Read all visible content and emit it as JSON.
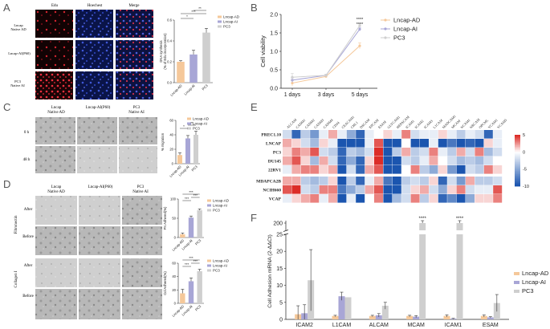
{
  "panels": {
    "A": {
      "letter": "A",
      "micro_headers": [
        "Edu",
        "Hoechest",
        "Merge"
      ],
      "micro_rows": [
        "Lncap\nNative AD",
        "Lncap-AI(P60)",
        "PC3\nNative AI"
      ],
      "ylabel": "DNA synthesis\n(% of Edu incorporation)",
      "sig": [
        "*",
        "***",
        "**"
      ]
    },
    "B": {
      "letter": "B"
    },
    "C": {
      "letter": "C",
      "micro_headers": [
        "Lncap\nNative AD",
        "Lncap-AI(P60)",
        "PC3\nNative AI"
      ],
      "micro_rows": [
        "0 h",
        "48 h"
      ],
      "ylabel": "% migration",
      "sig": [
        "*",
        "**"
      ]
    },
    "D": {
      "letter": "D",
      "micro_headers": [
        "Lncap\nNative AD",
        "Lncap-AI(P60)",
        "PC3\nNative AI"
      ],
      "groups": [
        "Fibronectin",
        "Collagen I"
      ],
      "rows": [
        "After",
        "Before"
      ],
      "ylabel_top": "FN Adhered(%)",
      "ylabel_bottom": "Col Adhered(%)",
      "sig_top": [
        "***",
        "***",
        "***"
      ],
      "sig_bottom": [
        "***",
        "***",
        "***"
      ]
    },
    "E": {
      "letter": "E"
    },
    "F": {
      "letter": "F"
    }
  },
  "colors": {
    "lncap_ad": "#f5c89a",
    "lncap_ai": "#a8a6d6",
    "pc3": "#cfcfcf"
  },
  "chart_data": [
    {
      "id": "A",
      "type": "bar",
      "categories": [
        "Lncap-AD",
        "Lncap-AI",
        "PC3"
      ],
      "values": [
        0.2,
        0.27,
        0.48
      ],
      "errors": [
        0.01,
        0.04,
        0.04
      ],
      "ylim": [
        0,
        0.6
      ],
      "yticks": [
        "0.0",
        "0.2",
        "0.4",
        "0.6"
      ],
      "legend": [
        "Lncap-AD",
        "Lncap-AI",
        "PC3"
      ]
    },
    {
      "id": "B",
      "type": "line",
      "ylabel": "Cell viability",
      "x": [
        "1 days",
        "3 days",
        "5 days"
      ],
      "ylim": [
        0.0,
        2.0
      ],
      "yticks": [
        "0.0",
        "0.5",
        "1.0",
        "1.5",
        "2.0"
      ],
      "series": [
        {
          "name": "Lncap-AD",
          "values": [
            0.14,
            0.32,
            1.15
          ],
          "errors": [
            0.08,
            0.03,
            0.08
          ]
        },
        {
          "name": "Lncap-AI",
          "values": [
            0.22,
            0.35,
            1.6
          ],
          "errors": [
            0.06,
            0.02,
            0.05
          ]
        },
        {
          "name": "PC3",
          "values": [
            0.3,
            0.35,
            1.7
          ],
          "errors": [
            0.1,
            0.03,
            0.05
          ]
        }
      ],
      "sig": [
        "****",
        "****"
      ]
    },
    {
      "id": "C",
      "type": "bar",
      "categories": [
        "Lncap-AD",
        "Lncap-AI",
        "PC3"
      ],
      "values": [
        12,
        35,
        40
      ],
      "errors": [
        3,
        4,
        5
      ],
      "ylim": [
        0,
        60
      ],
      "yticks": [
        "0",
        "20",
        "40",
        "60"
      ],
      "legend": [
        "Lncap-AD",
        "Lncap-AI",
        "PC3"
      ]
    },
    {
      "id": "D1",
      "type": "bar",
      "categories": [
        "Lncap-AD",
        "Lncap-AI",
        "PC3"
      ],
      "values": [
        10,
        62,
        85
      ],
      "errors": [
        4,
        5,
        4
      ],
      "ylim": [
        0,
        120
      ],
      "yticks": [
        "0",
        "50",
        "100"
      ],
      "legend": [
        "Lncap-AD",
        "Lncap-AI",
        "PC3"
      ]
    },
    {
      "id": "D2",
      "type": "bar",
      "categories": [
        "Lncap-AD",
        "Lncap-AI",
        "PC3"
      ],
      "values": [
        15,
        33,
        48
      ],
      "errors": [
        6,
        5,
        3
      ],
      "ylim": [
        0,
        60
      ],
      "yticks": [
        "0",
        "20",
        "40",
        "60"
      ],
      "legend": [
        "Lncap-AD",
        "Lncap-AI",
        "PC3"
      ]
    },
    {
      "id": "E",
      "type": "heatmap",
      "columns": [
        "ALCAM",
        "CADM1",
        "CADM2",
        "CADM3",
        "CADM4",
        "CD34",
        "CEACAM1",
        "CHL1",
        "DSCAM",
        "EPCAM",
        "ESAM",
        "GLYCAM1",
        "HEPACAM",
        "ICAM1",
        "ICAM2",
        "ICAM3",
        "L1CAM",
        "MADCAM1",
        "MCAM",
        "NCAM1",
        "NRCAM",
        "OPCML",
        "VCAM1",
        "VCAM5"
      ],
      "rows": [
        "PREC1.10",
        "LNCAP",
        "PC3",
        "DU145",
        "22RV1",
        "MDAPCA2B",
        "NCIH660",
        "VCAP"
      ],
      "scale_ticks": [
        "5",
        "0",
        "-5",
        "-10"
      ],
      "scale_range": [
        -10,
        5
      ],
      "values": [
        [
          -2,
          -9,
          -3,
          -6,
          -1,
          2,
          -1,
          -5,
          -9,
          -1,
          0,
          1,
          -1,
          3,
          -2,
          -1,
          -1,
          1,
          -1,
          -3,
          -1,
          -2,
          -9,
          -1
        ],
        [
          2,
          1,
          -2,
          -4,
          1,
          -1,
          -10,
          -10,
          -10,
          -1,
          4,
          -10,
          -10,
          0,
          -10,
          -10,
          -1,
          -10,
          -8,
          -10,
          -9,
          -10,
          1,
          -1
        ],
        [
          1,
          3,
          2,
          4,
          -2,
          -3,
          -9,
          -3,
          -4,
          -2,
          5,
          -10,
          -3,
          2,
          -3,
          -2,
          3,
          -1,
          -3,
          2,
          -2,
          3,
          -4,
          -2
        ],
        [
          2,
          4,
          1,
          -4,
          2,
          -2,
          -9,
          -5,
          -9,
          1,
          5,
          -10,
          -10,
          -2,
          -3,
          -1,
          2,
          0,
          -2,
          -4,
          -3,
          -4,
          -2,
          0
        ],
        [
          -1,
          2,
          3,
          3,
          1,
          2,
          -10,
          -2,
          -9,
          2,
          4,
          -10,
          -10,
          0,
          3,
          -3,
          -5,
          1,
          -6,
          -10,
          -2,
          -3,
          3,
          1
        ],
        [
          2,
          2,
          -3,
          -4,
          -3,
          1,
          -10,
          -3,
          -9,
          -1,
          2,
          -8,
          -10,
          -3,
          -2,
          -3,
          1,
          -9,
          -2,
          -6,
          2,
          -3,
          -3,
          -2
        ],
        [
          4,
          5,
          -2,
          -3,
          3,
          3,
          -8,
          -5,
          -3,
          2,
          4,
          -10,
          -10,
          -2,
          1,
          2,
          -2,
          -5,
          1,
          3,
          -2,
          -1,
          -1,
          4
        ],
        [
          -1,
          1,
          2,
          3,
          -1,
          2,
          -10,
          -1,
          -10,
          0,
          3,
          -10,
          -4,
          -2,
          3,
          -3,
          1,
          -9,
          -7,
          -10,
          -5,
          1,
          1,
          3
        ]
      ]
    },
    {
      "id": "F",
      "type": "bar",
      "ylabel": "Cell Adhesion mRNA (2-ΔΔCt)",
      "categories": [
        "ICAM2",
        "L1CAM",
        "ALCAM",
        "MCAM",
        "ICAM1",
        "ESAM"
      ],
      "series": [
        {
          "name": "Lncap-AD",
          "values": [
            1.5,
            1.0,
            1.0,
            1.0,
            1.0,
            1.0
          ],
          "errors": [
            2.5,
            0.2,
            0.2,
            0.2,
            0.3,
            0.3
          ]
        },
        {
          "name": "Lncap-AI",
          "values": [
            1.8,
            6.8,
            1.2,
            0.8,
            0.2,
            0.6
          ],
          "errors": [
            2.5,
            1.2,
            0.5,
            0.3,
            0.1,
            0.2
          ]
        },
        {
          "name": "PC3",
          "values": [
            11.5,
            6.5,
            4.0,
            200,
            200,
            4.8
          ],
          "errors": [
            9.0,
            0.0,
            1.0,
            10,
            8,
            2.5
          ]
        }
      ],
      "ylim_low": [
        0,
        25
      ],
      "yticks_low": [
        "0",
        "5",
        "10",
        "15",
        "20",
        "25"
      ],
      "ylim_high": [
        150,
        200
      ],
      "yticks_high": [
        "200"
      ],
      "sig": [
        "****",
        "****"
      ]
    }
  ]
}
